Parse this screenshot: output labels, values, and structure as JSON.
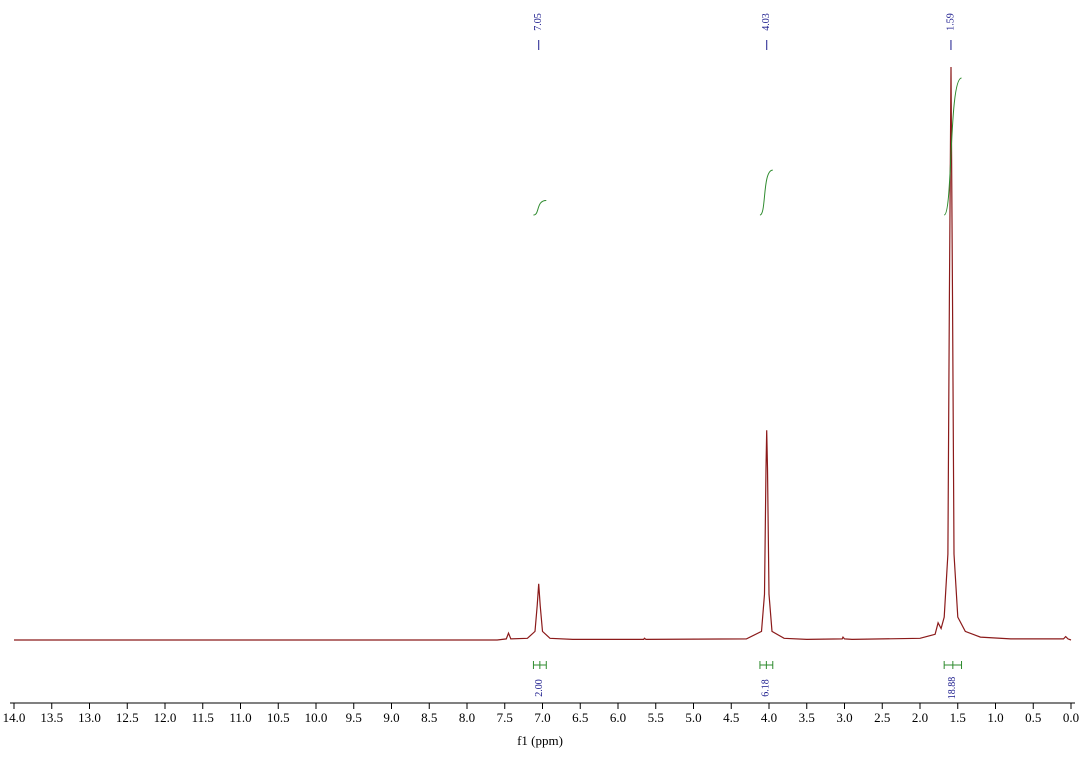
{
  "chart_data": {
    "type": "line",
    "x_label": "f1 (ppm)",
    "xlim": [
      14,
      0
    ],
    "xticks": [
      {
        "value": 14,
        "label": "14.0"
      },
      13.5,
      {
        "value": 13,
        "label": "13.0"
      },
      12.5,
      {
        "value": 12,
        "label": "12.0"
      },
      11.5,
      {
        "value": 11,
        "label": "11.0"
      },
      10.5,
      {
        "value": 10,
        "label": "10.0"
      },
      9.5,
      {
        "value": 9,
        "label": "9.0"
      },
      8.5,
      {
        "value": 8,
        "label": "8.0"
      },
      7.5,
      {
        "value": 7,
        "label": "7.0"
      },
      6.5,
      {
        "value": 6,
        "label": "6.0"
      },
      5.5,
      {
        "value": 5,
        "label": "5.0"
      },
      4.5,
      {
        "value": 4,
        "label": "4.0"
      },
      3.5,
      {
        "value": 3,
        "label": "3.0"
      },
      2.5,
      {
        "value": 2,
        "label": "2.0"
      },
      1.5,
      {
        "value": 1,
        "label": "1.0"
      },
      0.5,
      {
        "value": 0,
        "label": "0.0"
      }
    ],
    "color": "#8b1a1a",
    "x": [
      14.0,
      7.6,
      7.48,
      7.45,
      7.42,
      7.2,
      7.1,
      7.07,
      7.05,
      7.03,
      7.0,
      6.9,
      6.6,
      5.66,
      5.65,
      5.63,
      4.3,
      4.1,
      4.06,
      4.04,
      4.03,
      4.02,
      4.0,
      3.96,
      3.8,
      3.5,
      3.03,
      3.02,
      3.0,
      2.9,
      2.0,
      1.8,
      1.76,
      1.72,
      1.68,
      1.63,
      1.61,
      1.59,
      1.57,
      1.55,
      1.5,
      1.4,
      1.2,
      0.8,
      0.1,
      0.07,
      0.04,
      0.0
    ],
    "values": [
      0,
      0,
      0.2,
      1.2,
      0.2,
      0.3,
      1.5,
      6,
      9.8,
      6,
      1.5,
      0.3,
      0.1,
      0.1,
      0.3,
      0.1,
      0.2,
      1.5,
      8,
      30,
      36.6,
      30,
      8,
      1.5,
      0.3,
      0.1,
      0.2,
      0.5,
      0.2,
      0.1,
      0.3,
      1,
      3,
      2,
      4,
      15,
      60,
      100,
      60,
      15,
      4,
      1.5,
      0.5,
      0.2,
      0.2,
      0.6,
      0.2,
      0
    ],
    "peak_labels": [
      7.05,
      4.03,
      1.59
    ],
    "integral_color": "#2e8b2e",
    "integrals": [
      {
        "value": 2,
        "label": "2.00",
        "range": [
          7.12,
          6.95
        ]
      },
      {
        "value": 6.18,
        "label": "6.18",
        "range": [
          4.12,
          3.95
        ]
      },
      {
        "value": 18.88,
        "label": "18.88",
        "range": [
          1.68,
          1.45
        ]
      }
    ]
  }
}
